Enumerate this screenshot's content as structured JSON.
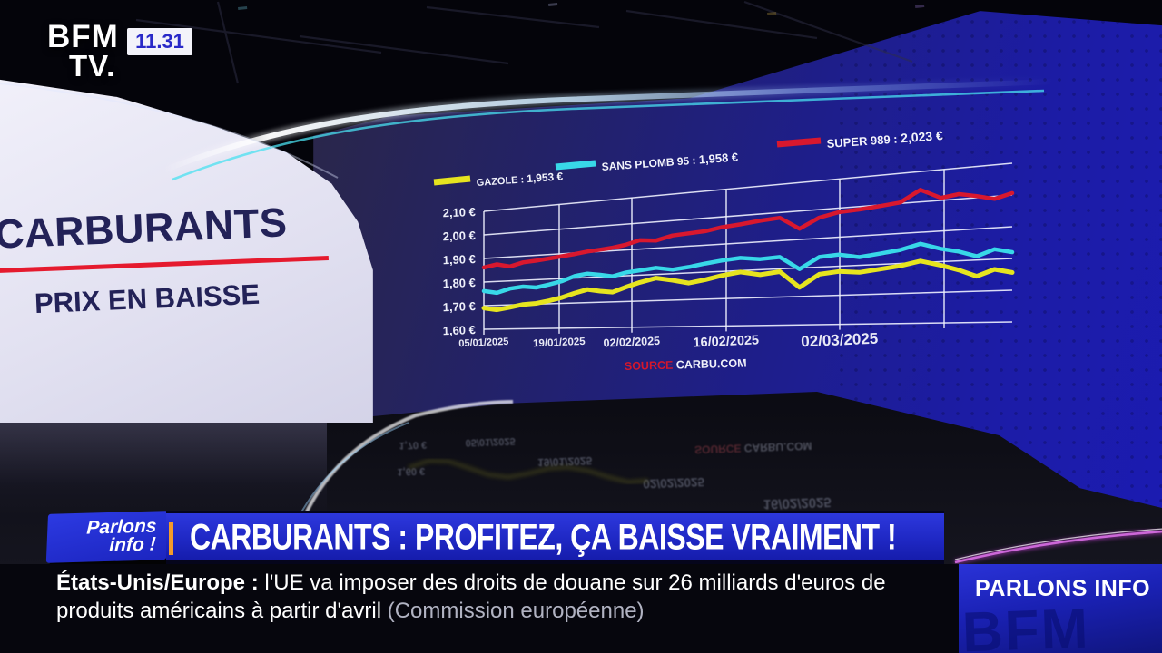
{
  "channel": {
    "logo_line1": "BFM",
    "logo_line2": "TV.",
    "time": "11.31"
  },
  "side_panel": {
    "title": "CARBURANTS",
    "subtitle": "PRIX EN BAISSE"
  },
  "chart_data": {
    "type": "line",
    "title": "",
    "x_labels": [
      "05/01/2025",
      "19/01/2025",
      "02/02/2025",
      "16/02/2025",
      "02/03/2025"
    ],
    "y_tick_labels": [
      "2,10 €",
      "2,00 €",
      "1,90 €",
      "1,80 €",
      "1,70 €",
      "1,60 €"
    ],
    "ylim": [
      1.6,
      2.1
    ],
    "grid": true,
    "legend_position": "top-diagonal",
    "source_label": "SOURCE",
    "source_name": "CARBU.COM",
    "series": [
      {
        "name": "GAZOLE",
        "legend_value": "1,953 €",
        "color": "#e6e41f",
        "values": [
          1.69,
          1.681,
          1.69,
          1.7,
          1.703,
          1.712,
          1.724,
          1.74,
          1.752,
          1.744,
          1.738,
          1.755,
          1.772,
          1.786,
          1.775,
          1.762,
          1.772,
          1.785,
          1.795,
          1.782,
          1.79,
          1.732,
          1.775,
          1.782,
          1.776,
          1.784,
          1.792,
          1.805,
          1.788,
          1.77,
          1.748,
          1.768,
          1.756
        ]
      },
      {
        "name": "SANS PLOMB 95",
        "legend_value": "1,958 €",
        "color": "#38d8e8",
        "values": [
          1.762,
          1.752,
          1.768,
          1.774,
          1.768,
          1.778,
          1.79,
          1.808,
          1.815,
          1.808,
          1.8,
          1.812,
          1.818,
          1.825,
          1.815,
          1.822,
          1.832,
          1.84,
          1.846,
          1.838,
          1.842,
          1.796,
          1.835,
          1.84,
          1.828,
          1.836,
          1.845,
          1.862,
          1.842,
          1.83,
          1.812,
          1.832,
          1.82
        ]
      },
      {
        "name": "SUPER 989",
        "legend_value": "2,023 €",
        "color": "#d8182e",
        "values": [
          1.862,
          1.872,
          1.86,
          1.874,
          1.878,
          1.884,
          1.89,
          1.896,
          1.903,
          1.907,
          1.912,
          1.92,
          1.934,
          1.929,
          1.944,
          1.948,
          1.952,
          1.962,
          1.968,
          1.976,
          1.981,
          1.938,
          1.972,
          1.986,
          1.99,
          1.996,
          2.003,
          2.04,
          2.008,
          2.016,
          2.005,
          1.992,
          2.006
        ]
      }
    ]
  },
  "banner": {
    "badge_line1": "Parlons",
    "badge_line2": "info !",
    "headline": "CARBURANTS : PROFITEZ, ÇA BAISSE VRAIMENT !"
  },
  "ticker": {
    "tag": "États-Unis/Europe :",
    "body": "l'UE va imposer des droits de douane sur 26 milliards d'euros de produits américains à partir d'avril",
    "light": "(Commission européenne)",
    "program": "PARLONS INFO",
    "watermark": "BFM"
  }
}
